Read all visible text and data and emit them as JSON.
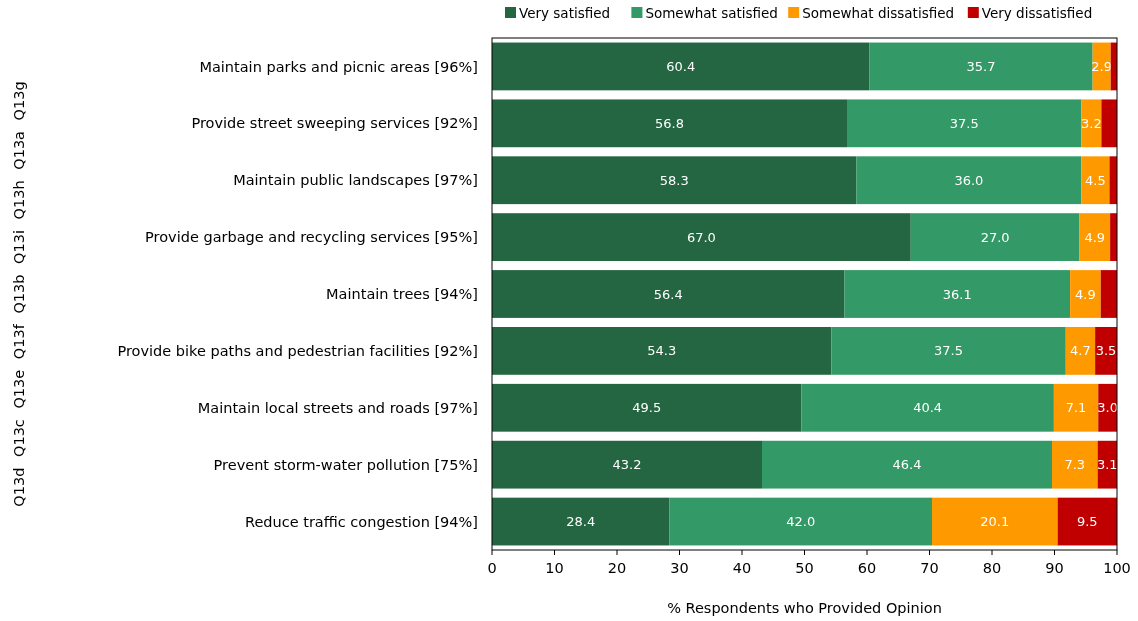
{
  "chart_data": {
    "type": "bar",
    "orientation": "horizontal",
    "stacked": true,
    "xlabel": "% Respondents who Provided Opinion",
    "annotations": [
      "Q13d Q13c Q13e Q13f Q13b Q13i Q13h Q13a Q13g"
    ],
    "categories": [
      "Maintain parks and picnic areas [96%]",
      "Provide street sweeping services [92%]",
      "Maintain public landscapes [97%]",
      "Provide garbage and recycling services [95%]",
      "Maintain trees [94%]",
      "Provide bike paths and pedestrian facilities [92%]",
      "Maintain local streets and roads [97%]",
      "Prevent storm-water pollution [75%]",
      "Reduce traffic congestion [94%]"
    ],
    "series": [
      {
        "name": "Very satisfied",
        "color": "#236641",
        "values": [
          60.4,
          56.8,
          58.3,
          67.0,
          56.4,
          54.3,
          49.5,
          43.2,
          28.4
        ],
        "value_labels": [
          "60.4",
          "56.8",
          "58.3",
          "67.0",
          "56.4",
          "54.3",
          "49.5",
          "43.2",
          "28.4"
        ]
      },
      {
        "name": "Somewhat satisfied",
        "color": "#339966",
        "values": [
          35.7,
          37.5,
          36.0,
          27.0,
          36.1,
          37.5,
          40.4,
          46.4,
          42.0
        ],
        "value_labels": [
          "35.7",
          "37.5",
          "36.0",
          "27.0",
          "36.1",
          "37.5",
          "40.4",
          "46.4",
          "42.0"
        ]
      },
      {
        "name": "Somewhat dissatisfied",
        "color": "#ff9900",
        "values": [
          2.9,
          3.2,
          4.5,
          4.9,
          4.9,
          4.7,
          7.1,
          7.3,
          20.1
        ],
        "value_labels": [
          "2.9",
          "3.2",
          "4.5",
          "4.9",
          "4.9",
          "4.7",
          "7.1",
          "7.3",
          "20.1"
        ]
      },
      {
        "name": "Very dissatisfied",
        "color": "#c00000",
        "values": [
          1.0,
          2.5,
          1.2,
          1.1,
          2.6,
          3.5,
          3.0,
          3.1,
          9.5
        ],
        "value_labels": [
          null,
          null,
          null,
          null,
          null,
          "3.5",
          "3.0",
          "3.1",
          "9.5"
        ]
      }
    ],
    "xlim": [
      0,
      100
    ],
    "xticks": [
      0,
      10,
      20,
      30,
      40,
      50,
      60,
      70,
      80,
      90,
      100
    ],
    "legend": "top right"
  }
}
